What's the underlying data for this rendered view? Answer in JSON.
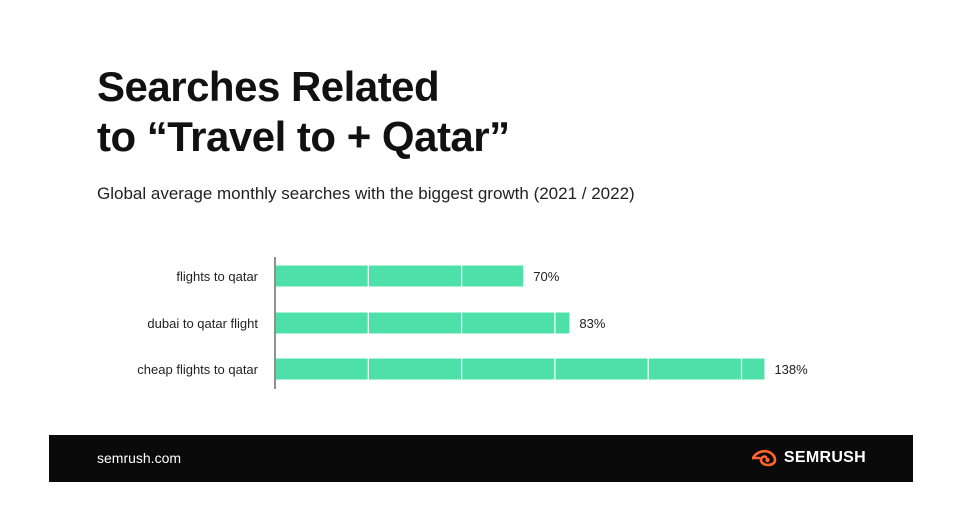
{
  "header": {
    "title_line1": "Searches Related",
    "title_line2": "to “Travel to + Qatar”",
    "subtitle": "Global average monthly searches with the biggest growth (2021 / 2022)"
  },
  "chart_data": {
    "type": "bar",
    "orientation": "horizontal",
    "categories": [
      "flights to qatar",
      "dubai to qatar flight",
      "cheap flights to qatar"
    ],
    "values": [
      70,
      83,
      138
    ],
    "value_labels": [
      "70%",
      "83%",
      "138%"
    ],
    "xlim": [
      0,
      150
    ],
    "grid": true,
    "bar_color": "#4de0a8"
  },
  "footer": {
    "url": "semrush.com",
    "brand": "SEMRUSH",
    "brand_icon": "semrush-flame-icon",
    "brand_color": "#ff642d"
  }
}
